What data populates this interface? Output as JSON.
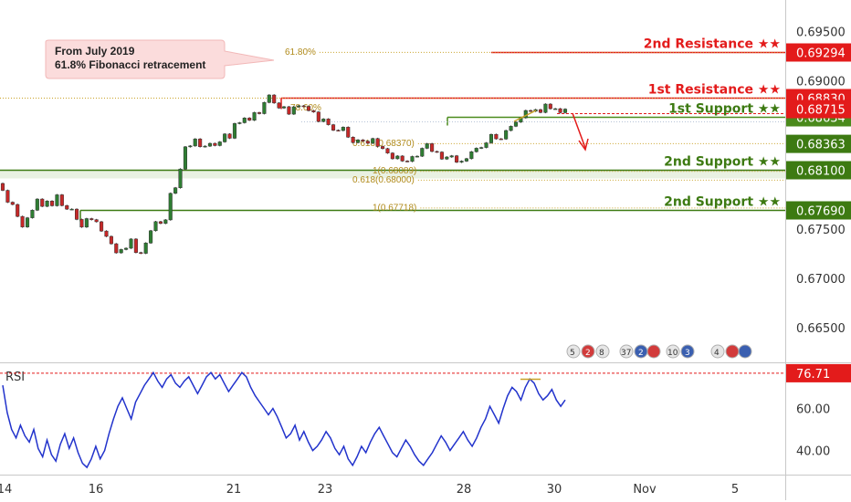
{
  "chart_data": {
    "type": "candlestick",
    "y_axis_ticks": [
      "0.69500",
      "0.69000",
      "0.67500",
      "0.67000",
      "0.66500"
    ],
    "x_axis_ticks": [
      "14",
      "16",
      "21",
      "23",
      "28",
      "30",
      "Nov",
      "5"
    ],
    "ylim": [
      0.6615,
      0.6982
    ],
    "annotation": {
      "line1": "From July 2019",
      "line2": "61.8% Fibonacci retracement"
    },
    "levels": [
      {
        "label": "2nd Resistance ★★",
        "value": "0.69294",
        "price": 0.69294,
        "color": "#e31b1b",
        "text_color": "#e31b1b"
      },
      {
        "label": "1st Resistance ★★",
        "value": "0.68830",
        "price": 0.6883,
        "color": "#e31b1b",
        "text_color": "#e31b1b"
      },
      {
        "label": "1st Support ★★",
        "value": "0.68634",
        "price": 0.68634,
        "color": "#4a8a1c",
        "text_color": "#3d7a12"
      },
      {
        "label": "2nd Support ★★",
        "value": "0.68100",
        "price": 0.681,
        "color": "#3d7a12",
        "text_color": "#3d7a12"
      },
      {
        "label": "2nd Support ★★",
        "value": "0.67690",
        "price": 0.6769,
        "color": "#3d7a12",
        "text_color": "#3d7a12"
      }
    ],
    "price_tags": [
      {
        "value": "0.68715",
        "price": 0.68715,
        "color": "#e31b1b"
      },
      {
        "value": "0.68363",
        "price": 0.68363,
        "color": "#3d7a12"
      }
    ],
    "fib_labels": [
      {
        "text": "61.80%",
        "price": 0.69294
      },
      {
        "text": "78.60%",
        "price": 0.6873
      },
      {
        "text": "0.618(0.68370)",
        "price": 0.6837
      },
      {
        "text": "1(0.68089)",
        "price": 0.68089
      },
      {
        "text": "0.618(0.68000)",
        "price": 0.68
      },
      {
        "text": "1(0.67718)",
        "price": 0.67718
      }
    ],
    "rsi": {
      "label": "RSI",
      "ticks": [
        "60.00",
        "40.00"
      ],
      "level_value": "76.71",
      "ylim": [
        29,
        81
      ],
      "values": [
        71,
        58,
        50,
        46,
        52,
        47,
        44,
        50,
        41,
        37,
        45,
        38,
        35,
        43,
        48,
        41,
        46,
        39,
        34,
        32,
        36,
        42,
        36,
        40,
        48,
        55,
        61,
        65,
        60,
        55,
        63,
        67,
        71,
        74,
        77,
        73,
        70,
        74,
        76,
        72,
        70,
        73,
        75,
        71,
        67,
        71,
        75,
        77,
        74,
        76,
        72,
        68,
        71,
        74,
        77,
        75,
        70,
        66,
        63,
        60,
        57,
        60,
        56,
        51,
        46,
        48,
        52,
        45,
        49,
        44,
        40,
        42,
        45,
        49,
        46,
        41,
        38,
        42,
        36,
        33,
        37,
        42,
        39,
        44,
        48,
        51,
        47,
        43,
        39,
        37,
        41,
        45,
        42,
        38,
        35,
        33,
        36,
        39,
        43,
        47,
        44,
        40,
        43,
        46,
        49,
        45,
        42,
        46,
        51,
        55,
        61,
        57,
        53,
        60,
        66,
        70,
        68,
        64,
        70,
        74,
        72,
        67,
        64,
        66,
        69,
        64,
        61,
        64
      ]
    },
    "candles": [
      [
        0.67962,
        0.67892
      ],
      [
        0.67892,
        0.67772
      ],
      [
        0.67772,
        0.67749
      ],
      [
        0.67749,
        0.67628
      ],
      [
        0.67628,
        0.67521
      ],
      [
        0.67521,
        0.67614
      ],
      [
        0.67614,
        0.67691
      ],
      [
        0.67691,
        0.67804
      ],
      [
        0.67804,
        0.6773
      ],
      [
        0.6773,
        0.67784
      ],
      [
        0.67784,
        0.67736
      ],
      [
        0.67736,
        0.67847
      ],
      [
        0.67847,
        0.67738
      ],
      [
        0.67738,
        0.67702
      ],
      [
        0.67702,
        0.67702
      ],
      [
        0.67702,
        0.67598
      ],
      [
        0.67598,
        0.6752
      ],
      [
        0.6752,
        0.67606
      ],
      [
        0.67606,
        0.67595
      ],
      [
        0.67595,
        0.67574
      ],
      [
        0.67574,
        0.6748
      ],
      [
        0.6748,
        0.67426
      ],
      [
        0.67426,
        0.67351
      ],
      [
        0.67351,
        0.67259
      ],
      [
        0.67259,
        0.67293
      ],
      [
        0.67293,
        0.67306
      ],
      [
        0.67306,
        0.67399
      ],
      [
        0.67399,
        0.67262
      ],
      [
        0.67262,
        0.67254
      ],
      [
        0.67254,
        0.67359
      ],
      [
        0.67359,
        0.67483
      ],
      [
        0.67483,
        0.67575
      ],
      [
        0.67575,
        0.67557
      ],
      [
        0.67557,
        0.67593
      ],
      [
        0.67593,
        0.67862
      ],
      [
        0.67862,
        0.67918
      ],
      [
        0.67918,
        0.68108
      ],
      [
        0.68108,
        0.68333
      ],
      [
        0.68333,
        0.68342
      ],
      [
        0.68342,
        0.68413
      ],
      [
        0.68413,
        0.68334
      ],
      [
        0.68334,
        0.6834
      ],
      [
        0.6834,
        0.68368
      ],
      [
        0.68368,
        0.68346
      ],
      [
        0.68346,
        0.68383
      ],
      [
        0.68383,
        0.68463
      ],
      [
        0.68463,
        0.6842
      ],
      [
        0.6842,
        0.68569
      ],
      [
        0.68569,
        0.68577
      ],
      [
        0.68577,
        0.68625
      ],
      [
        0.68625,
        0.68602
      ],
      [
        0.68602,
        0.6868
      ],
      [
        0.6868,
        0.68669
      ],
      [
        0.68669,
        0.68782
      ],
      [
        0.68782,
        0.68858
      ],
      [
        0.68858,
        0.68777
      ],
      [
        0.68777,
        0.68726
      ],
      [
        0.68726,
        0.68739
      ],
      [
        0.68739,
        0.68664
      ],
      [
        0.68664,
        0.68738
      ],
      [
        0.68738,
        0.68748
      ],
      [
        0.68748,
        0.68743
      ],
      [
        0.68743,
        0.687
      ],
      [
        0.687,
        0.68686
      ],
      [
        0.68686,
        0.68589
      ],
      [
        0.68589,
        0.68615
      ],
      [
        0.68615,
        0.68557
      ],
      [
        0.68557,
        0.68501
      ],
      [
        0.68501,
        0.68498
      ],
      [
        0.68498,
        0.68532
      ],
      [
        0.68532,
        0.68431
      ],
      [
        0.68431,
        0.68376
      ],
      [
        0.68376,
        0.68403
      ],
      [
        0.68403,
        0.6839
      ],
      [
        0.6839,
        0.68369
      ],
      [
        0.68369,
        0.68417
      ],
      [
        0.68417,
        0.68337
      ],
      [
        0.68337,
        0.68315
      ],
      [
        0.68315,
        0.6827
      ],
      [
        0.6827,
        0.68212
      ],
      [
        0.68212,
        0.6824
      ],
      [
        0.6824,
        0.68189
      ],
      [
        0.68189,
        0.68185
      ],
      [
        0.68185,
        0.68235
      ],
      [
        0.68235,
        0.68238
      ],
      [
        0.68238,
        0.68318
      ],
      [
        0.68318,
        0.68365
      ],
      [
        0.68365,
        0.68286
      ],
      [
        0.68286,
        0.6828
      ],
      [
        0.6828,
        0.68209
      ],
      [
        0.68209,
        0.6823
      ],
      [
        0.6823,
        0.68242
      ],
      [
        0.68242,
        0.68177
      ],
      [
        0.68177,
        0.68188
      ],
      [
        0.68188,
        0.68213
      ],
      [
        0.68213,
        0.68283
      ],
      [
        0.68283,
        0.68319
      ],
      [
        0.68319,
        0.68326
      ],
      [
        0.68326,
        0.68373
      ],
      [
        0.68373,
        0.68459
      ],
      [
        0.68459,
        0.68414
      ],
      [
        0.68414,
        0.68412
      ],
      [
        0.68412,
        0.68498
      ],
      [
        0.68498,
        0.68541
      ],
      [
        0.68541,
        0.68583
      ],
      [
        0.68583,
        0.68627
      ],
      [
        0.68627,
        0.68701
      ],
      [
        0.68701,
        0.68693
      ],
      [
        0.68693,
        0.6871
      ],
      [
        0.6871,
        0.68681
      ],
      [
        0.68681,
        0.68766
      ],
      [
        0.68766,
        0.68719
      ],
      [
        0.68719,
        0.68719
      ],
      [
        0.68719,
        0.68679
      ],
      [
        0.68679,
        0.68715
      ]
    ]
  }
}
